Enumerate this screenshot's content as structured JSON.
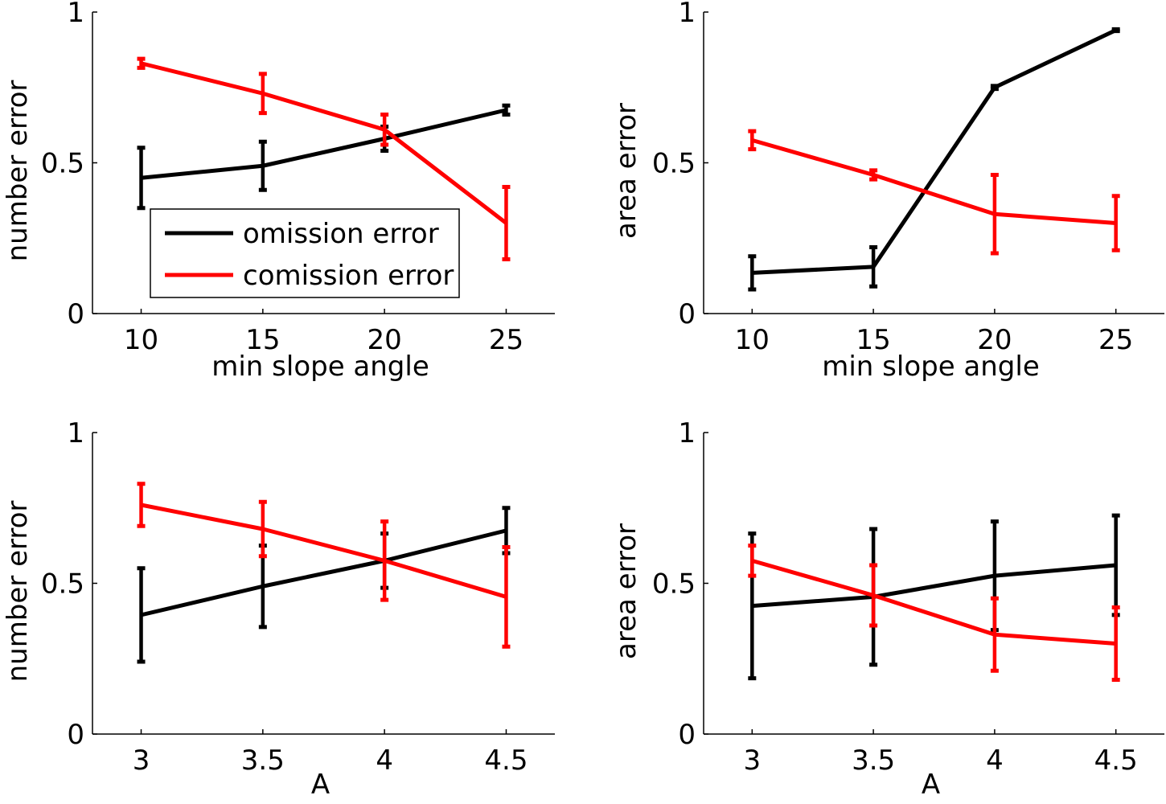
{
  "chart_data": [
    {
      "type": "line",
      "panel": "top-left",
      "xlabel": "min slope angle",
      "ylabel": "number error",
      "x": [
        10,
        15,
        20,
        25
      ],
      "x_tick_labels": [
        "10",
        "15",
        "20",
        "25"
      ],
      "xlim": [
        8,
        27
      ],
      "y_tick_values": [
        0,
        0.5,
        1
      ],
      "y_tick_labels": [
        "0",
        "0.5",
        "1"
      ],
      "ylim": [
        0,
        1
      ],
      "series": [
        {
          "name": "omission error",
          "color": "#000000",
          "values": [
            0.45,
            0.49,
            0.58,
            0.675
          ],
          "err": [
            0.1,
            0.08,
            0.04,
            0.015
          ]
        },
        {
          "name": "comission error",
          "color": "#ff0000",
          "values": [
            0.83,
            0.73,
            0.61,
            0.3
          ],
          "err": [
            0.015,
            0.065,
            0.05,
            0.12
          ]
        }
      ],
      "legend": {
        "position": "lower-left",
        "entries": [
          "omission error",
          "comission error"
        ]
      }
    },
    {
      "type": "line",
      "panel": "top-right",
      "xlabel": "min slope angle",
      "ylabel": "area error",
      "x": [
        10,
        15,
        20,
        25
      ],
      "x_tick_labels": [
        "10",
        "15",
        "20",
        "25"
      ],
      "xlim": [
        8,
        27
      ],
      "y_tick_values": [
        0,
        0.5,
        1
      ],
      "y_tick_labels": [
        "0",
        "0.5",
        "1"
      ],
      "ylim": [
        0,
        1
      ],
      "series": [
        {
          "name": "omission error",
          "color": "#000000",
          "values": [
            0.135,
            0.155,
            0.75,
            0.94
          ],
          "err": [
            0.055,
            0.065,
            0.005,
            0.003
          ]
        },
        {
          "name": "comission error",
          "color": "#ff0000",
          "values": [
            0.575,
            0.46,
            0.33,
            0.3
          ],
          "err": [
            0.03,
            0.015,
            0.13,
            0.09
          ]
        }
      ]
    },
    {
      "type": "line",
      "panel": "bottom-left",
      "xlabel": "A",
      "ylabel": "number error",
      "x": [
        3,
        3.5,
        4,
        4.5
      ],
      "x_tick_labels": [
        "3",
        "3.5",
        "4",
        "4.5"
      ],
      "xlim": [
        2.8,
        4.7
      ],
      "y_tick_values": [
        0,
        0.5,
        1
      ],
      "y_tick_labels": [
        "0",
        "0.5",
        "1"
      ],
      "ylim": [
        0,
        1
      ],
      "series": [
        {
          "name": "omission error",
          "color": "#000000",
          "values": [
            0.395,
            0.49,
            0.575,
            0.675
          ],
          "err": [
            0.155,
            0.135,
            0.09,
            0.075
          ]
        },
        {
          "name": "comission error",
          "color": "#ff0000",
          "values": [
            0.76,
            0.68,
            0.575,
            0.455
          ],
          "err": [
            0.07,
            0.09,
            0.13,
            0.165
          ]
        }
      ]
    },
    {
      "type": "line",
      "panel": "bottom-right",
      "xlabel": "A",
      "ylabel": "area error",
      "x": [
        3,
        3.5,
        4,
        4.5
      ],
      "x_tick_labels": [
        "3",
        "3.5",
        "4",
        "4.5"
      ],
      "xlim": [
        2.8,
        4.7
      ],
      "y_tick_values": [
        0,
        0.5,
        1
      ],
      "y_tick_labels": [
        "0",
        "0.5",
        "1"
      ],
      "ylim": [
        0,
        1
      ],
      "series": [
        {
          "name": "omission error",
          "color": "#000000",
          "values": [
            0.425,
            0.455,
            0.525,
            0.56
          ],
          "err": [
            0.24,
            0.225,
            0.18,
            0.165
          ]
        },
        {
          "name": "comission error",
          "color": "#ff0000",
          "values": [
            0.575,
            0.46,
            0.33,
            0.3
          ],
          "err": [
            0.05,
            0.1,
            0.12,
            0.12
          ]
        }
      ]
    }
  ]
}
